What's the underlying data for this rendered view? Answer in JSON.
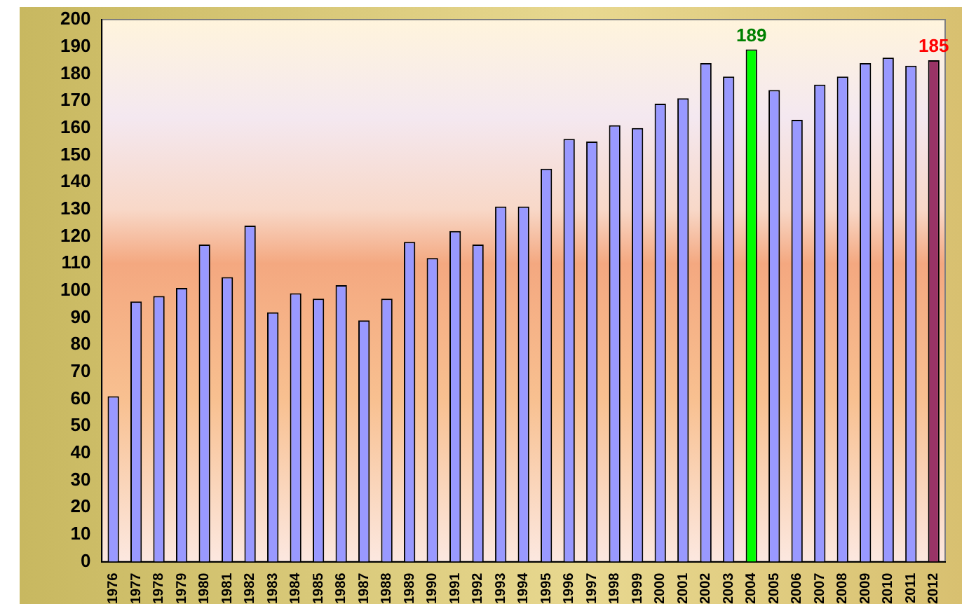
{
  "chart_data": {
    "type": "bar",
    "categories": [
      "1976",
      "1977",
      "1978",
      "1979",
      "1980",
      "1981",
      "1982",
      "1983",
      "1984",
      "1985",
      "1986",
      "1987",
      "1988",
      "1989",
      "1990",
      "1991",
      "1992",
      "1993",
      "1994",
      "1995",
      "1996",
      "1997",
      "1998",
      "1999",
      "2000",
      "2001",
      "2002",
      "2003",
      "2004",
      "2005",
      "2006",
      "2007",
      "2008",
      "2009",
      "2010",
      "2011",
      "2012"
    ],
    "values": [
      61,
      96,
      98,
      101,
      117,
      105,
      124,
      92,
      99,
      97,
      102,
      89,
      97,
      118,
      112,
      122,
      117,
      131,
      131,
      145,
      156,
      155,
      161,
      160,
      169,
      171,
      184,
      179,
      189,
      174,
      163,
      176,
      179,
      184,
      186,
      183,
      185
    ],
    "colors": [
      "#9999ff",
      "#9999ff",
      "#9999ff",
      "#9999ff",
      "#9999ff",
      "#9999ff",
      "#9999ff",
      "#9999ff",
      "#9999ff",
      "#9999ff",
      "#9999ff",
      "#9999ff",
      "#9999ff",
      "#9999ff",
      "#9999ff",
      "#9999ff",
      "#9999ff",
      "#9999ff",
      "#9999ff",
      "#9999ff",
      "#9999ff",
      "#9999ff",
      "#9999ff",
      "#9999ff",
      "#9999ff",
      "#9999ff",
      "#9999ff",
      "#9999ff",
      "#00ff00",
      "#9999ff",
      "#9999ff",
      "#9999ff",
      "#9999ff",
      "#9999ff",
      "#9999ff",
      "#9999ff",
      "#993366"
    ],
    "value_labels": [
      null,
      null,
      null,
      null,
      null,
      null,
      null,
      null,
      null,
      null,
      null,
      null,
      null,
      null,
      null,
      null,
      null,
      null,
      null,
      null,
      null,
      null,
      null,
      null,
      null,
      null,
      null,
      null,
      "189",
      null,
      null,
      null,
      null,
      null,
      null,
      null,
      "185"
    ],
    "ylim": [
      0,
      200
    ],
    "yticks": [
      0,
      10,
      20,
      30,
      40,
      50,
      60,
      70,
      80,
      90,
      100,
      110,
      120,
      130,
      140,
      150,
      160,
      170,
      180,
      190,
      200
    ],
    "grid": false,
    "legend": false
  }
}
